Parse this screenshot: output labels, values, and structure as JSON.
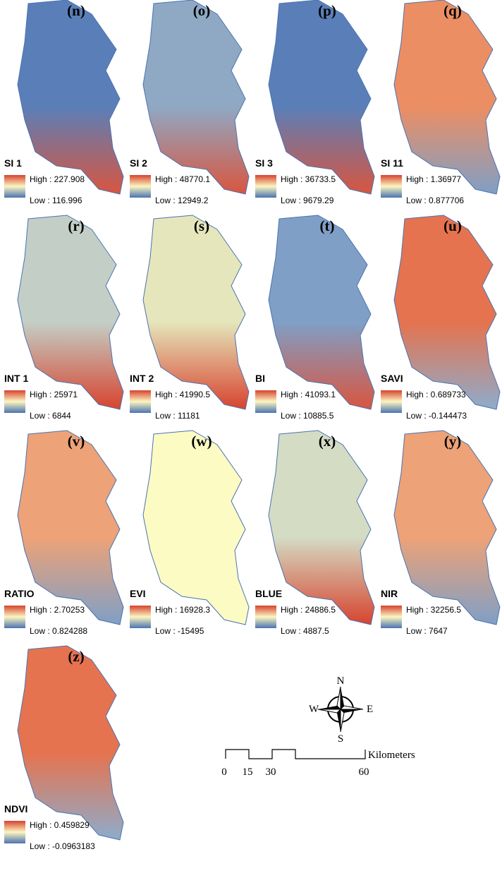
{
  "panels": [
    {
      "letter": "(n)",
      "name": "SI 1",
      "high": "High : 227.908",
      "low": "Low : 116.996",
      "colors": [
        "#5a7fb8",
        "#d9553f"
      ]
    },
    {
      "letter": "(o)",
      "name": "SI 2",
      "high": "High : 48770.1",
      "low": "Low : 12949.2",
      "colors": [
        "#8fa9c4",
        "#d9553f"
      ]
    },
    {
      "letter": "(p)",
      "name": "SI 3",
      "high": "High : 36733.5",
      "low": "Low : 9679.29",
      "colors": [
        "#5a7fb8",
        "#d9553f"
      ]
    },
    {
      "letter": "(q)",
      "name": "SI 11",
      "high": "High : 1.36977",
      "low": "Low : 0.877706",
      "colors": [
        "#ec8e63",
        "#7f9fc6"
      ]
    },
    {
      "letter": "(r)",
      "name": "INT 1",
      "high": "High : 25971",
      "low": "Low : 6844",
      "colors": [
        "#c3cfc6",
        "#d7432e"
      ]
    },
    {
      "letter": "(s)",
      "name": "INT 2",
      "high": "High : 41990.5",
      "low": "Low : 11181",
      "colors": [
        "#e5e6bb",
        "#d7432e"
      ]
    },
    {
      "letter": "(t)",
      "name": "BI",
      "high": "High : 41093.1",
      "low": "Low : 10885.5",
      "colors": [
        "#7f9fc6",
        "#d9553f"
      ]
    },
    {
      "letter": "(u)",
      "name": "SAVI",
      "high": "High : 0.689733",
      "low": "Low : -0.144473",
      "colors": [
        "#e5734f",
        "#8eaccb"
      ]
    },
    {
      "letter": "(v)",
      "name": "RATIO",
      "high": "High : 2.70253",
      "low": "Low : 0.824288",
      "colors": [
        "#eda277",
        "#7f9fc6"
      ]
    },
    {
      "letter": "(w)",
      "name": "EVI",
      "high": "High : 16928.3",
      "low": "Low : -15495",
      "colors": [
        "#fdfbc4",
        "#fdfbc4"
      ]
    },
    {
      "letter": "(x)",
      "name": "BLUE",
      "high": "High : 24886.5",
      "low": "Low : 4887.5",
      "colors": [
        "#d4dcc4",
        "#d7432e"
      ]
    },
    {
      "letter": "(y)",
      "name": "NIR",
      "high": "High : 32256.5",
      "low": "Low : 7647",
      "colors": [
        "#eda277",
        "#7f9fc6"
      ]
    },
    {
      "letter": "(z)",
      "name": "NDVI",
      "high": "High : 0.459829",
      "low": "Low : -0.0963183",
      "colors": [
        "#e5734f",
        "#8eaccb"
      ]
    }
  ],
  "compass": {
    "n": "N",
    "e": "E",
    "s": "S",
    "w": "W"
  },
  "scale_bar": {
    "ticks": [
      0,
      15,
      30,
      60
    ],
    "unit": "Kilometers"
  }
}
